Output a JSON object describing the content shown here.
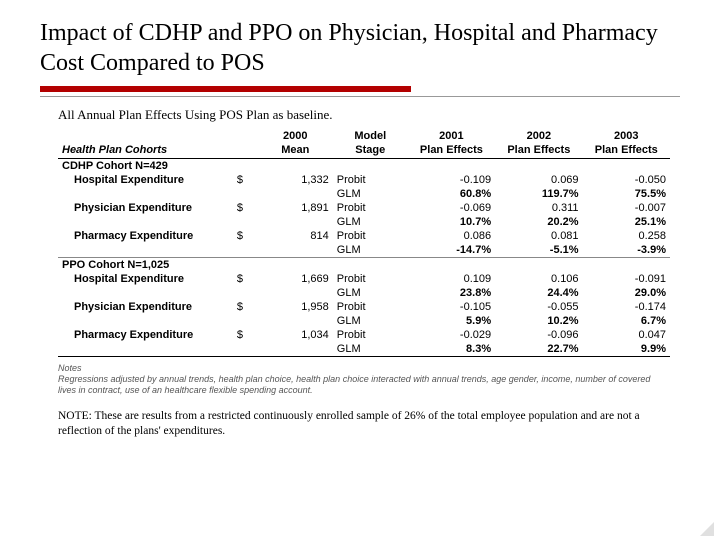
{
  "title": "Impact of CDHP and PPO on Physician, Hospital and Pharmacy Cost Compared to POS",
  "subtitle": "All Annual Plan Effects Using POS Plan as baseline.",
  "columns": {
    "c0": "Health Plan Cohorts",
    "c1_top": "2000",
    "c1_bot": "Mean",
    "c2_top": "Model",
    "c2_bot": "Stage",
    "c3_top": "2001",
    "c3_bot": "Plan Effects",
    "c4_top": "2002",
    "c4_bot": "Plan Effects",
    "c5_top": "2003",
    "c5_bot": "Plan Effects"
  },
  "sections": [
    {
      "header": "CDHP Cohort N=429",
      "rows": [
        {
          "label": "Hospital Expenditure",
          "cur": "$",
          "mean": "1,332",
          "stage1": "Probit",
          "v1": "-0.109",
          "v2": "0.069",
          "v3": "-0.050",
          "stage2": "GLM",
          "g1": "60.8%",
          "g2": "119.7%",
          "g3": "75.5%"
        },
        {
          "label": "Physician Expenditure",
          "cur": "$",
          "mean": "1,891",
          "stage1": "Probit",
          "v1": "-0.069",
          "v2": "0.311",
          "v3": "-0.007",
          "stage2": "GLM",
          "g1": "10.7%",
          "g2": "20.2%",
          "g3": "25.1%"
        },
        {
          "label": "Pharmacy Expenditure",
          "cur": "$",
          "mean": "814",
          "stage1": "Probit",
          "v1": "0.086",
          "v2": "0.081",
          "v3": "0.258",
          "stage2": "GLM",
          "g1": "-14.7%",
          "g2": "-5.1%",
          "g3": "-3.9%"
        }
      ]
    },
    {
      "header": "PPO Cohort N=1,025",
      "rows": [
        {
          "label": "Hospital Expenditure",
          "cur": "$",
          "mean": "1,669",
          "stage1": "Probit",
          "v1": "0.109",
          "v2": "0.106",
          "v3": "-0.091",
          "stage2": "GLM",
          "g1": "23.8%",
          "g2": "24.4%",
          "g3": "29.0%"
        },
        {
          "label": "Physician Expenditure",
          "cur": "$",
          "mean": "1,958",
          "stage1": "Probit",
          "v1": "-0.105",
          "v2": "-0.055",
          "v3": "-0.174",
          "stage2": "GLM",
          "g1": "5.9%",
          "g2": "10.2%",
          "g3": "6.7%"
        },
        {
          "label": "Pharmacy Expenditure",
          "cur": "$",
          "mean": "1,034",
          "stage1": "Probit",
          "v1": "-0.029",
          "v2": "-0.096",
          "v3": "0.047",
          "stage2": "GLM",
          "g1": "8.3%",
          "g2": "22.7%",
          "g3": "9.9%"
        }
      ]
    }
  ],
  "notes_label": "Notes",
  "notes_body": "Regressions adjusted by annual trends, health plan choice, health plan choice interacted with annual trends, age gender, income, number of covered lives in contract, use of an healthcare flexible spending account.",
  "footnote": "NOTE: These are results from a restricted continuously enrolled sample of 26% of the total employee population and are not a reflection of the plans' expenditures.",
  "colors": {
    "accent": "#b30000"
  }
}
